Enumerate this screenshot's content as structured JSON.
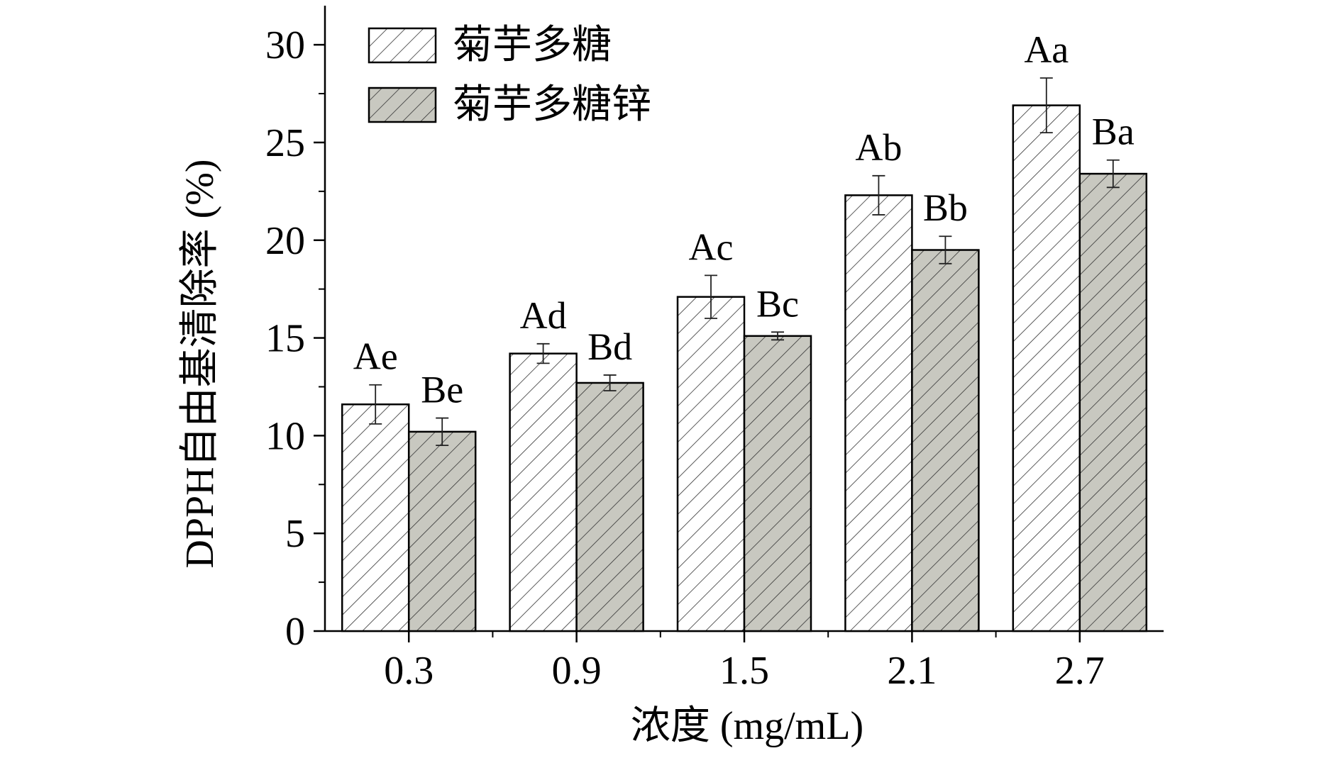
{
  "chart_data": {
    "type": "bar",
    "title": "",
    "xlabel": "浓度 (mg/mL)",
    "ylabel": "DPPH自由基清除率 (%)",
    "ylim": [
      0,
      32
    ],
    "yticks": [
      0,
      5,
      10,
      15,
      20,
      25,
      30
    ],
    "categories": [
      "0.3",
      "0.9",
      "1.5",
      "2.1",
      "2.7"
    ],
    "legend_position": "top-left",
    "grid": false,
    "series": [
      {
        "name": "菊芋多糖",
        "fill": "hatched-white",
        "color": "#ffffff",
        "values": [
          11.6,
          14.2,
          17.1,
          22.3,
          26.9
        ],
        "errors": [
          1.0,
          0.5,
          1.1,
          1.0,
          1.4
        ],
        "labels": [
          "Ae",
          "Ad",
          "Ac",
          "Ab",
          "Aa"
        ]
      },
      {
        "name": "菊芋多糖锌",
        "fill": "hatched-gray",
        "color": "#c8c8c0",
        "values": [
          10.2,
          12.7,
          15.1,
          19.5,
          23.4
        ],
        "errors": [
          0.7,
          0.4,
          0.2,
          0.7,
          0.7
        ],
        "labels": [
          "Be",
          "Bd",
          "Bc",
          "Bb",
          "Ba"
        ]
      }
    ]
  }
}
